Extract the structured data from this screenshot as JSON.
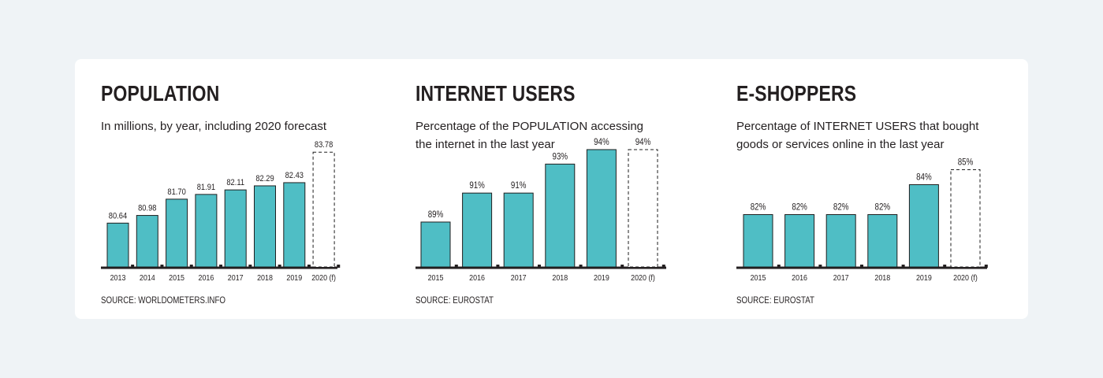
{
  "colors": {
    "bar": "#4fbec5",
    "bar_stroke": "#1f1f1f",
    "axis": "#231f20",
    "text": "#231f20",
    "page_bg": "#eff3f6",
    "card_bg": "#ffffff"
  },
  "panels": [
    {
      "title": "POPULATION",
      "subtitle": "In millions, by year, including 2020 forecast",
      "source": "SOURCE: WORLDOMETERS.INFO"
    },
    {
      "title": "INTERNET USERS",
      "subtitle": "Percentage of the POPULATION accessing\nthe internet in the last year",
      "source": "SOURCE: EUROSTAT"
    },
    {
      "title": "E-SHOPPERS",
      "subtitle": "Percentage of INTERNET USERS that bought\ngoods or services online in the last year",
      "source": "SOURCE: EUROSTAT"
    }
  ],
  "chart_data": [
    {
      "type": "bar",
      "title": "POPULATION",
      "categories": [
        "2013",
        "2014",
        "2015",
        "2016",
        "2017",
        "2018",
        "2019",
        "2020 (f)"
      ],
      "values": [
        80.64,
        80.98,
        81.7,
        81.91,
        82.11,
        82.29,
        82.43,
        83.78
      ],
      "labels": [
        "80.64",
        "80.98",
        "81.70",
        "81.91",
        "82.11",
        "82.29",
        "82.43",
        "83.78"
      ],
      "forecast": [
        false,
        false,
        false,
        false,
        false,
        false,
        false,
        true
      ]
    },
    {
      "type": "bar",
      "title": "INTERNET USERS",
      "categories": [
        "2015",
        "2016",
        "2017",
        "2018",
        "2019",
        "2020 (f)"
      ],
      "values": [
        89,
        91,
        91,
        93,
        94,
        94
      ],
      "labels": [
        "89%",
        "91%",
        "91%",
        "93%",
        "94%",
        "94%"
      ],
      "forecast": [
        false,
        false,
        false,
        false,
        false,
        true
      ]
    },
    {
      "type": "bar",
      "title": "E-SHOPPERS",
      "categories": [
        "2015",
        "2016",
        "2017",
        "2018",
        "2019",
        "2020 (f)"
      ],
      "values": [
        82,
        82,
        82,
        82,
        84,
        85
      ],
      "labels": [
        "82%",
        "82%",
        "82%",
        "82%",
        "84%",
        "85%"
      ],
      "forecast": [
        false,
        false,
        false,
        false,
        false,
        true
      ]
    }
  ]
}
